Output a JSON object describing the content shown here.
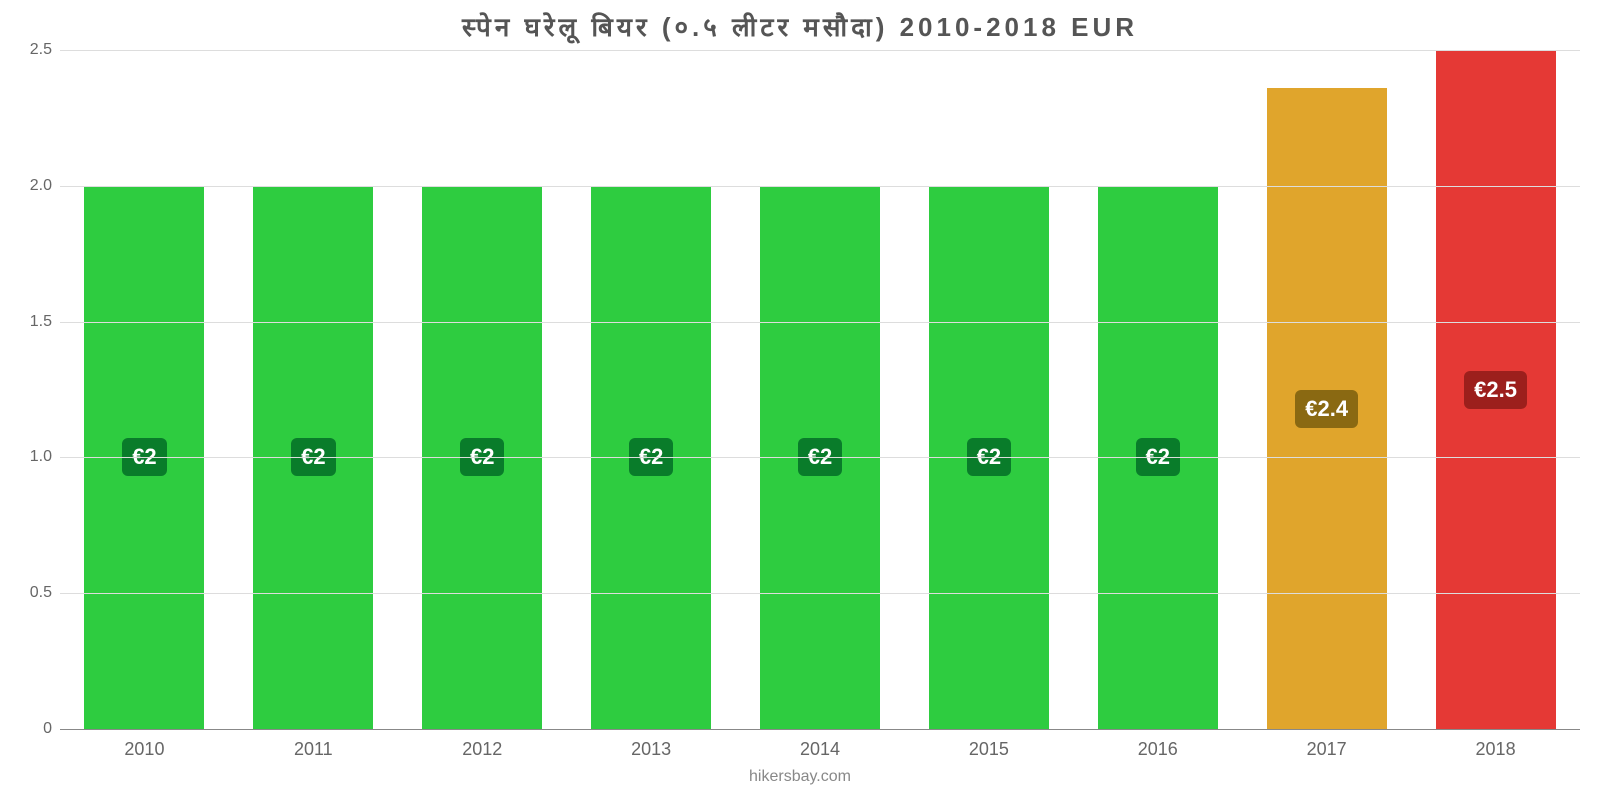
{
  "chart": {
    "type": "bar",
    "title": "स्पेन  घरेलू  बियर  (०.५  लीटर  मसौदा) 2010-2018 EUR",
    "title_fontsize": 26,
    "title_color": "#555555",
    "background_color": "#ffffff",
    "grid_color": "#dddddd",
    "axis_color": "#888888",
    "ylim": [
      0,
      2.5
    ],
    "yticks": [
      0,
      0.5,
      1.0,
      1.5,
      2.0,
      2.5
    ],
    "ytick_labels": [
      "0",
      "0.5",
      "1.0",
      "1.5",
      "2.0",
      "2.5"
    ],
    "tick_fontsize": 16,
    "xtick_fontsize": 18,
    "tick_color": "#666666",
    "bar_width_pct": 71,
    "categories": [
      "2010",
      "2011",
      "2012",
      "2013",
      "2014",
      "2015",
      "2016",
      "2017",
      "2018"
    ],
    "values": [
      2.0,
      2.0,
      2.0,
      2.0,
      2.0,
      2.0,
      2.0,
      2.36,
      2.5
    ],
    "bar_colors": [
      "#2ecc40",
      "#2ecc40",
      "#2ecc40",
      "#2ecc40",
      "#2ecc40",
      "#2ecc40",
      "#2ecc40",
      "#e0a52c",
      "#e53935"
    ],
    "value_labels": [
      "€2",
      "€2",
      "€2",
      "€2",
      "€2",
      "€2",
      "€2",
      "€2.4",
      "€2.5"
    ],
    "value_label_bg": [
      "#097c2a",
      "#097c2a",
      "#097c2a",
      "#097c2a",
      "#097c2a",
      "#097c2a",
      "#097c2a",
      "#8a6912",
      "#9c1f1c"
    ],
    "value_label_fontsize": 22,
    "value_label_color": "#ffffff",
    "footer": "hikersbay.com",
    "footer_color": "#888888",
    "footer_fontsize": 16
  }
}
